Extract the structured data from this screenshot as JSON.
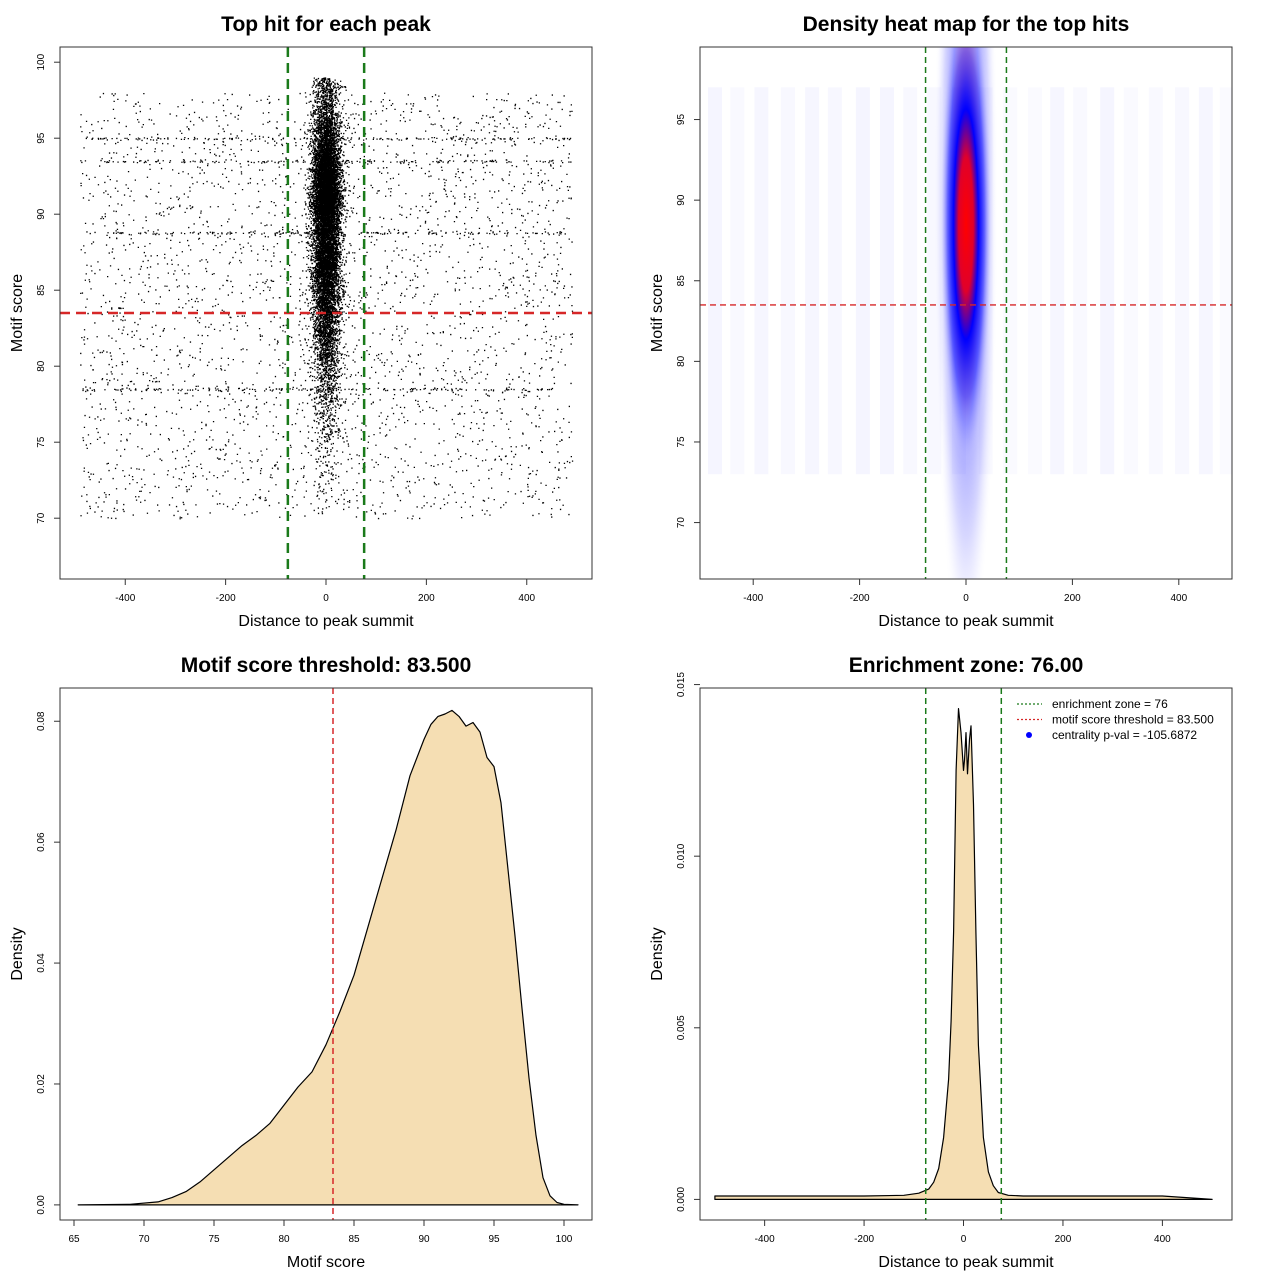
{
  "chart_data": [
    {
      "type": "scatter",
      "title": "Top hit for each peak",
      "xlabel": "Distance to peak summit",
      "ylabel": "Motif score",
      "xlim": [
        -530,
        530
      ],
      "ylim": [
        66,
        101
      ],
      "xticks": [
        -400,
        -200,
        0,
        200,
        400
      ],
      "yticks": [
        70,
        75,
        80,
        85,
        90,
        95,
        100
      ],
      "points_description": "Dense central cluster around distance 0 (about -40 to 40) with scores mostly 75-99; sparse uniform background across -500 to 500 with scores 70-98; horizontal streaks near scores 93.5, 95, 88.8 and 78.5",
      "hlines": [
        {
          "y": 83.5,
          "color": "#d62728",
          "style": "dashed"
        }
      ],
      "vlines": [
        {
          "x": -76,
          "color": "#1a7a1a",
          "style": "dashed"
        },
        {
          "x": 76,
          "color": "#1a7a1a",
          "style": "dashed"
        }
      ],
      "grid": false
    },
    {
      "type": "heatmap",
      "title": "Density heat map for the top hits",
      "xlabel": "Distance to peak summit",
      "ylabel": "Motif score",
      "xlim": [
        -500,
        500
      ],
      "ylim": [
        66.5,
        99.5
      ],
      "xticks": [
        -400,
        -200,
        0,
        200,
        400
      ],
      "yticks": [
        70,
        75,
        80,
        85,
        90,
        95
      ],
      "colors": [
        "#ffffff",
        "#0000ff",
        "#ff0000"
      ],
      "density_peak": {
        "x": 0,
        "y": 92
      },
      "hlines": [
        {
          "y": 83.5,
          "color": "#d62728",
          "style": "dashed"
        }
      ],
      "vlines": [
        {
          "x": -76,
          "color": "#1a7a1a",
          "style": "dashed"
        },
        {
          "x": 76,
          "color": "#1a7a1a",
          "style": "dashed"
        }
      ],
      "grid": false
    },
    {
      "type": "area",
      "title": "Motif score threshold: 83.500",
      "xlabel": "Motif score",
      "ylabel": "Density",
      "xlim": [
        64,
        102
      ],
      "ylim": [
        -0.0025,
        0.0855
      ],
      "xticks": [
        65,
        70,
        75,
        80,
        85,
        90,
        95,
        100
      ],
      "yticks": [
        0.0,
        0.02,
        0.04,
        0.06,
        0.08
      ],
      "ytick_labels": [
        "0.00",
        "0.02",
        "0.04",
        "0.06",
        "0.08"
      ],
      "fill": "#f5deb3",
      "x": [
        65.3,
        69.0,
        71.0,
        72.0,
        73.0,
        74.0,
        75.0,
        76.0,
        77.0,
        78.0,
        79.0,
        80.0,
        81.0,
        82.0,
        83.0,
        84.0,
        85.0,
        86.0,
        87.0,
        88.0,
        89.0,
        90.0,
        90.5,
        91.0,
        91.5,
        92.0,
        92.5,
        93.0,
        93.5,
        94.0,
        94.5,
        95.0,
        95.5,
        96.0,
        96.5,
        97.0,
        97.5,
        98.0,
        98.5,
        99.0,
        99.5,
        100.0,
        101.0
      ],
      "y": [
        0.0,
        0.0001,
        0.0005,
        0.0012,
        0.0022,
        0.0038,
        0.0058,
        0.0078,
        0.0098,
        0.0115,
        0.0135,
        0.0165,
        0.0195,
        0.022,
        0.0265,
        0.032,
        0.038,
        0.046,
        0.054,
        0.062,
        0.071,
        0.077,
        0.0795,
        0.0808,
        0.0812,
        0.0818,
        0.0808,
        0.0792,
        0.0798,
        0.0782,
        0.074,
        0.0725,
        0.0665,
        0.0555,
        0.0445,
        0.0325,
        0.021,
        0.0115,
        0.0045,
        0.0015,
        0.0004,
        0.0001,
        0.0
      ],
      "vlines": [
        {
          "x": 83.5,
          "color": "#d62728",
          "style": "dashed"
        }
      ],
      "grid": false
    },
    {
      "type": "area",
      "title": "Enrichment zone: 76.00",
      "xlabel": "Distance to peak summit",
      "ylabel": "Density",
      "xlim": [
        -530,
        540
      ],
      "ylim": [
        -0.0006,
        0.0149
      ],
      "xticks": [
        -400,
        -200,
        0,
        200,
        400
      ],
      "yticks": [
        0.0,
        0.005,
        0.01,
        0.015
      ],
      "ytick_labels": [
        "0.000",
        "0.005",
        "0.010",
        "0.015"
      ],
      "fill": "#f5deb3",
      "x": [
        -500,
        -400,
        -300,
        -200,
        -120,
        -90,
        -70,
        -60,
        -50,
        -40,
        -30,
        -25,
        -20,
        -15,
        -10,
        -5,
        0,
        2,
        5,
        8,
        12,
        15,
        20,
        25,
        30,
        40,
        50,
        60,
        70,
        90,
        120,
        200,
        300,
        400,
        500
      ],
      "y": [
        0.0001,
        0.0001,
        0.0001,
        0.0001,
        0.00012,
        0.00018,
        0.0003,
        0.0005,
        0.0009,
        0.0018,
        0.0035,
        0.0052,
        0.0078,
        0.0125,
        0.0143,
        0.0136,
        0.0125,
        0.0128,
        0.0136,
        0.0124,
        0.0134,
        0.0138,
        0.0115,
        0.0078,
        0.0045,
        0.0018,
        0.0008,
        0.0004,
        0.0002,
        0.00012,
        0.0001,
        0.0001,
        0.0001,
        0.0001,
        0.0
      ],
      "vlines": [
        {
          "x": -76,
          "color": "#1a7a1a",
          "style": "dashed"
        },
        {
          "x": 76,
          "color": "#1a7a1a",
          "style": "dashed"
        }
      ],
      "legend": {
        "placement": "top-right",
        "entries": [
          {
            "label": "enrichment zone = 76",
            "color": "#1a7a1a",
            "marker": "dotted-line"
          },
          {
            "label": "motif score threshold = 83.500",
            "color": "#d62728",
            "marker": "dotted-line"
          },
          {
            "label": "centrality p-val = -105.6872",
            "color": "#0000ff",
            "marker": "dot"
          }
        ]
      },
      "grid": false
    }
  ]
}
